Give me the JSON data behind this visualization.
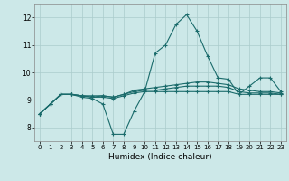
{
  "title": "",
  "xlabel": "Humidex (Indice chaleur)",
  "ylabel": "",
  "xlim": [
    -0.5,
    23.5
  ],
  "ylim": [
    7.5,
    12.5
  ],
  "xticks": [
    0,
    1,
    2,
    3,
    4,
    5,
    6,
    7,
    8,
    9,
    10,
    11,
    12,
    13,
    14,
    15,
    16,
    17,
    18,
    19,
    20,
    21,
    22,
    23
  ],
  "yticks": [
    8,
    9,
    10,
    11,
    12
  ],
  "background_color": "#cce8e8",
  "grid_color": "#aacccc",
  "line_color": "#1a6b6b",
  "series": [
    [
      8.5,
      8.85,
      9.2,
      9.2,
      9.1,
      9.05,
      8.85,
      7.75,
      7.75,
      8.6,
      9.3,
      10.7,
      11.0,
      11.75,
      12.1,
      11.5,
      10.6,
      9.8,
      9.75,
      9.2,
      9.5,
      9.8,
      9.8,
      9.3
    ],
    [
      8.5,
      8.85,
      9.2,
      9.2,
      9.15,
      9.15,
      9.15,
      9.1,
      9.2,
      9.35,
      9.4,
      9.45,
      9.5,
      9.55,
      9.6,
      9.65,
      9.65,
      9.6,
      9.55,
      9.4,
      9.35,
      9.3,
      9.3,
      9.25
    ],
    [
      8.5,
      8.85,
      9.2,
      9.2,
      9.15,
      9.1,
      9.1,
      9.05,
      9.15,
      9.25,
      9.3,
      9.3,
      9.3,
      9.3,
      9.3,
      9.3,
      9.3,
      9.3,
      9.3,
      9.2,
      9.2,
      9.2,
      9.2,
      9.2
    ],
    [
      8.5,
      8.85,
      9.2,
      9.2,
      9.15,
      9.1,
      9.15,
      9.1,
      9.2,
      9.3,
      9.35,
      9.35,
      9.4,
      9.45,
      9.5,
      9.5,
      9.5,
      9.5,
      9.45,
      9.3,
      9.25,
      9.25,
      9.25,
      9.2
    ]
  ]
}
